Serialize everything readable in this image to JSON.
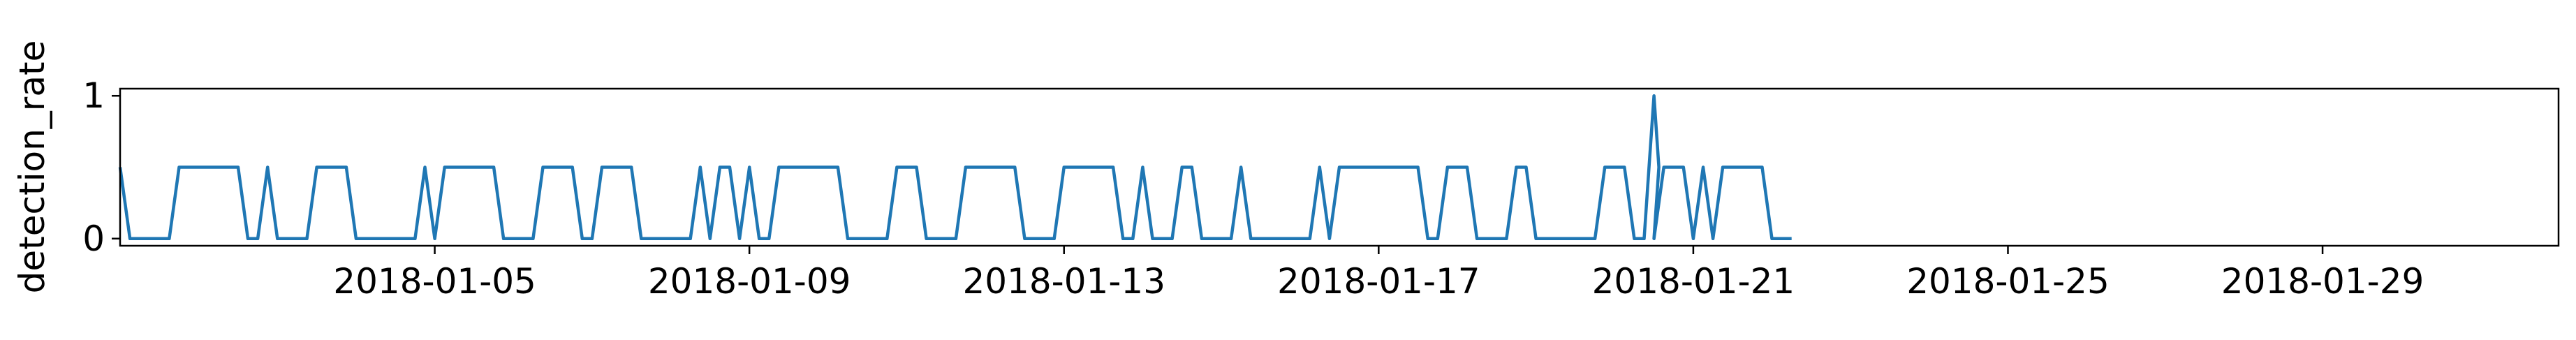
{
  "chart_data": {
    "type": "line",
    "title": "",
    "xlabel": "",
    "ylabel": "detection_rate",
    "x_axis": {
      "kind": "date",
      "range": [
        "2018-01-01",
        "2018-02-01"
      ],
      "tick_labels": [
        "2018-01-05",
        "2018-01-09",
        "2018-01-13",
        "2018-01-17",
        "2018-01-21",
        "2018-01-25",
        "2018-01-29"
      ]
    },
    "y_axis": {
      "range": [
        -0.05,
        1.05
      ],
      "ticks": [
        0,
        1
      ],
      "tick_labels": [
        "0",
        "1"
      ]
    },
    "grid": false,
    "legend": "none",
    "series": [
      {
        "color": "#1f77b4",
        "x": [
          "2018-01-01",
          "2018-01-22"
        ],
        "baseline_values": [
          0,
          0.5
        ],
        "peak": {
          "x": "2018-01-20 12:00",
          "y": 1
        },
        "note_values": "hourly samples alternating mostly between 0 and 0.5, single spike to 1"
      }
    ]
  }
}
